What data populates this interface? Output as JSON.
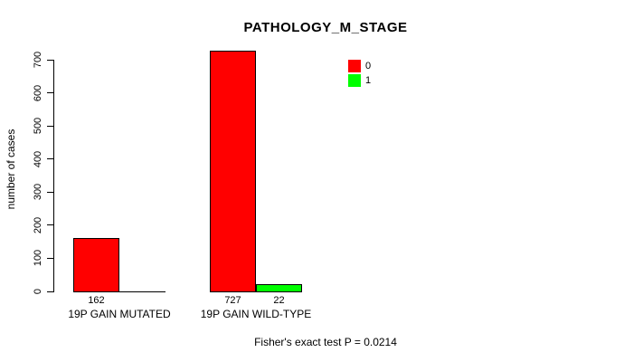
{
  "chart_data": {
    "type": "bar",
    "title": "PATHOLOGY_M_STAGE",
    "ylabel": "number of cases",
    "xlabel": "",
    "ylim": [
      0,
      700
    ],
    "yticks": [
      0,
      100,
      200,
      300,
      400,
      500,
      600,
      700
    ],
    "grid": false,
    "categories": [
      "19P GAIN MUTATED",
      "19P GAIN WILD-TYPE"
    ],
    "series": [
      {
        "name": "0",
        "color": "#ff0000",
        "values": [
          162,
          727
        ]
      },
      {
        "name": "1",
        "color": "#00ff00",
        "values": [
          0,
          22
        ]
      }
    ],
    "bar_value_labels": [
      [
        "162",
        ""
      ],
      [
        "727",
        "22"
      ]
    ],
    "legend": {
      "position": "top-right",
      "entries": [
        {
          "label": "0",
          "color": "#ff0000"
        },
        {
          "label": "1",
          "color": "#00ff00"
        }
      ]
    },
    "footer": "Fisher's exact test P = 0.0214"
  }
}
